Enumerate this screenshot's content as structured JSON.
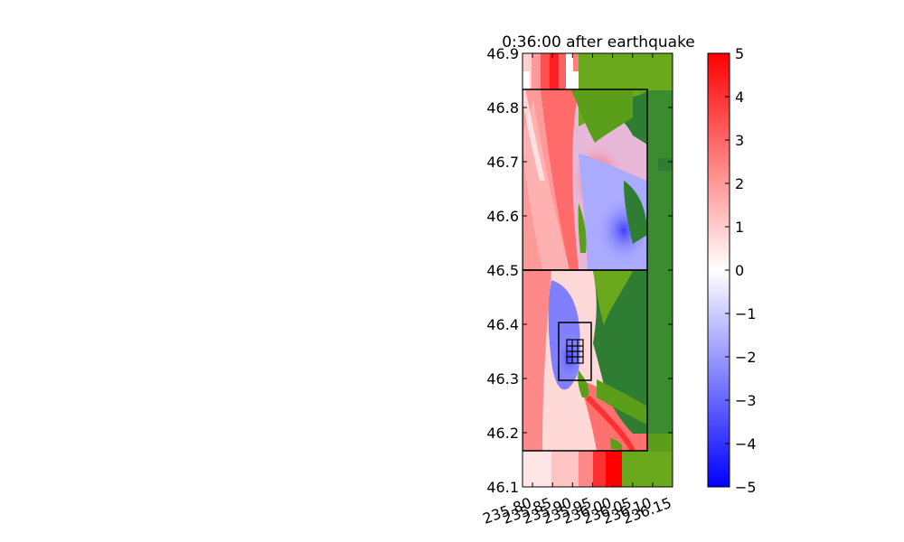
{
  "chart_data": [
    {
      "type": "heatmap",
      "title": "0:36:00 after earthquake",
      "xlabel": "",
      "ylabel": "",
      "xlim": [
        235.775,
        236.15
      ],
      "ylim": [
        46.1,
        46.9
      ],
      "xticks": [
        "235.80",
        "235.85",
        "235.90",
        "235.95",
        "236.00",
        "236.05",
        "236.10",
        "236.15"
      ],
      "xtick_values": [
        235.8,
        235.85,
        235.9,
        235.95,
        236.0,
        236.05,
        236.1,
        236.15
      ],
      "yticks": [
        "46.1",
        "46.2",
        "46.3",
        "46.4",
        "46.5",
        "46.6",
        "46.7",
        "46.8",
        "46.9"
      ],
      "ytick_values": [
        46.1,
        46.2,
        46.3,
        46.4,
        46.5,
        46.6,
        46.7,
        46.8,
        46.9
      ],
      "grid": false,
      "refinement_boxes": [
        {
          "x": [
            235.775,
            236.087
          ],
          "y": [
            46.5,
            46.834
          ]
        },
        {
          "x": [
            235.775,
            236.087
          ],
          "y": [
            46.167,
            46.5
          ]
        },
        {
          "x": [
            235.866,
            235.947
          ],
          "y": [
            46.297,
            46.405
          ]
        },
        {
          "x": [
            235.886,
            235.926
          ],
          "y": [
            46.327,
            46.372
          ]
        }
      ]
    },
    {
      "type": "colorbar",
      "colormap": "bwr",
      "vmin": -5,
      "vmax": 5,
      "ticks": [
        "5",
        "4",
        "3",
        "2",
        "1",
        "0",
        "−1",
        "−2",
        "−3",
        "−4",
        "−5"
      ],
      "tick_values": [
        5,
        4,
        3,
        2,
        1,
        0,
        -1,
        -2,
        -3,
        -4,
        -5
      ]
    }
  ],
  "colors": {
    "ocean_positive": "#ff0000",
    "ocean_zero": "#ffffff",
    "ocean_negative": "#0000ff",
    "land_light": "#5a9e1a",
    "land_dark": "#2e7d32"
  }
}
